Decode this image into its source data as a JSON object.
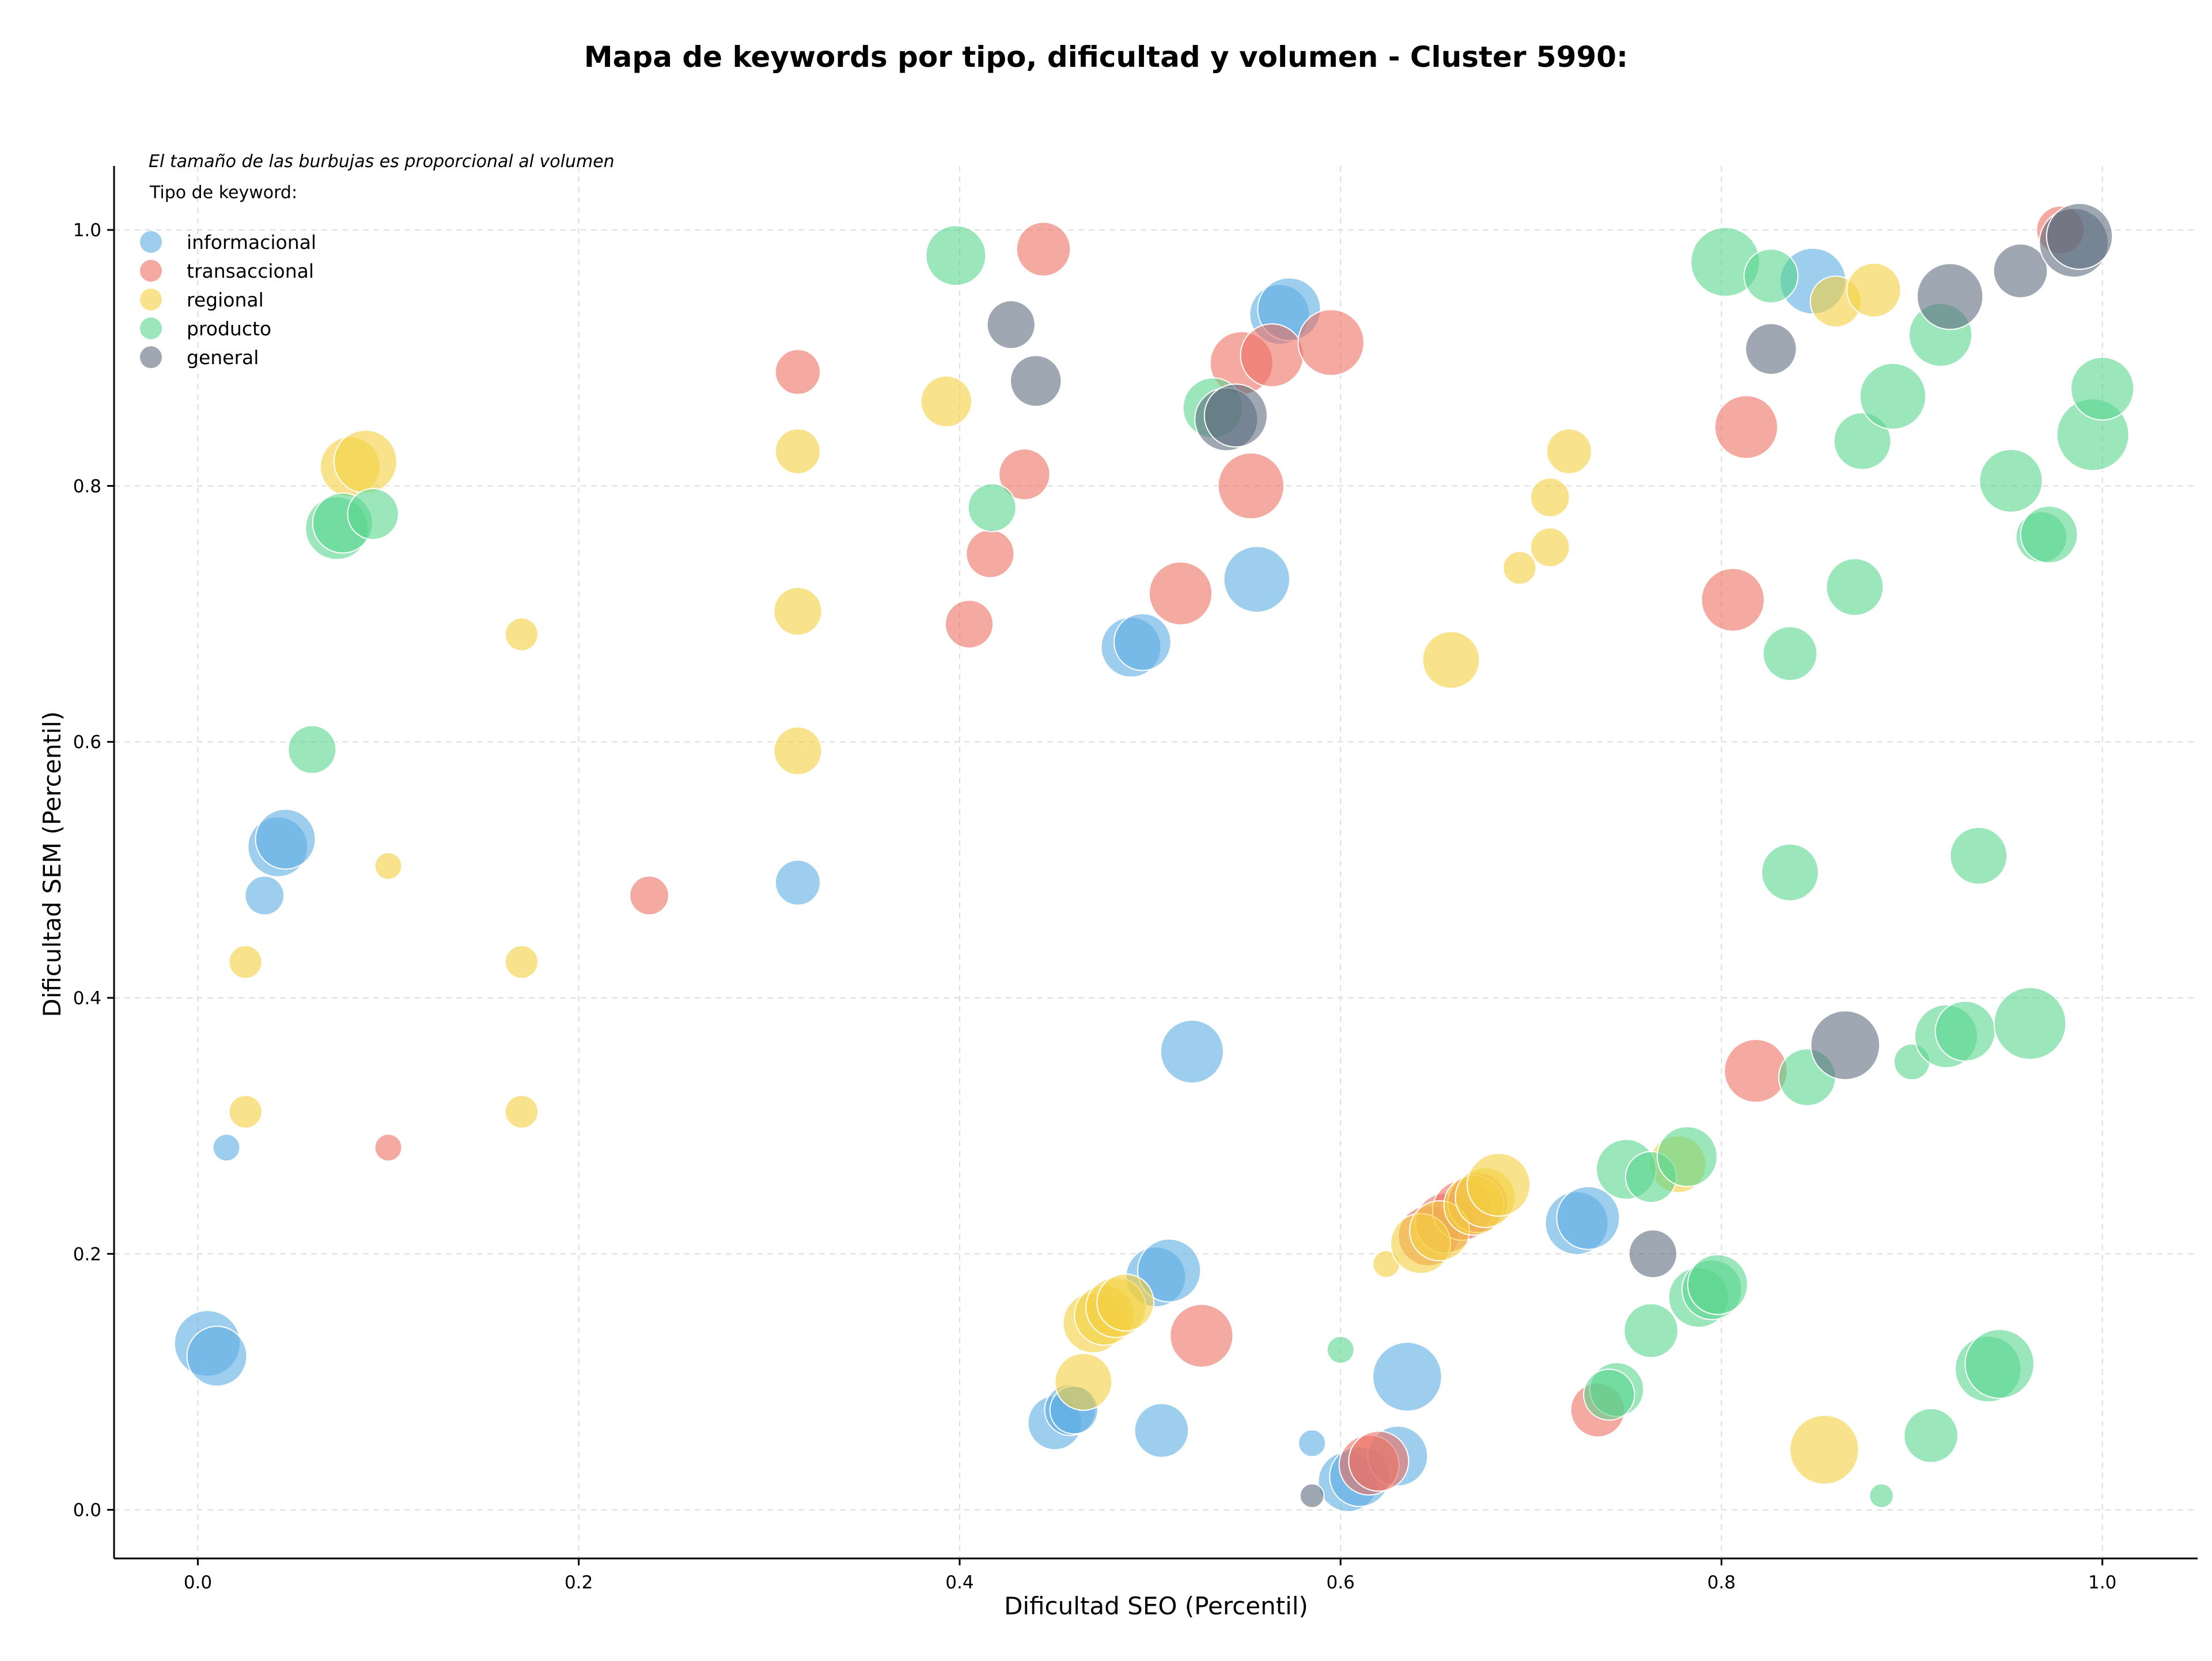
{
  "chart_data": {
    "type": "scatter",
    "title": "Mapa de keywords por tipo, dificultad y volumen - Cluster 5990:",
    "xlabel": "Dificultad SEO (Percentil)",
    "ylabel": "Dificultad SEM (Percentil)",
    "xlim": [
      -0.044,
      1.05
    ],
    "ylim": [
      -0.038,
      1.05
    ],
    "xticks": [
      "0.0",
      "0.2",
      "0.4",
      "0.6",
      "0.8",
      "1.0"
    ],
    "yticks": [
      "0.0",
      "0.2",
      "0.4",
      "0.6",
      "0.8",
      "1.0"
    ],
    "grid": true,
    "note": "El tamaño de las burbujas es proporcional al volumen",
    "legend_title": "Tipo de keyword:",
    "legend_position": "top-left",
    "series": [
      {
        "name": "informacional",
        "color": "#5DADE2",
        "points": [
          [
            0.005,
            0.13,
            1.1
          ],
          [
            0.01,
            0.12,
            1.0
          ],
          [
            0.015,
            0.283,
            0.45
          ],
          [
            0.035,
            0.48,
            0.65
          ],
          [
            0.042,
            0.518,
            1.0
          ],
          [
            0.046,
            0.524,
            1.0
          ],
          [
            0.315,
            0.49,
            0.75
          ],
          [
            0.45,
            0.068,
            0.9
          ],
          [
            0.458,
            0.078,
            0.85
          ],
          [
            0.46,
            0.078,
            0.8
          ],
          [
            0.49,
            0.674,
            1.0
          ],
          [
            0.496,
            0.678,
            0.95
          ],
          [
            0.503,
            0.182,
            1.0
          ],
          [
            0.51,
            0.187,
            1.05
          ],
          [
            0.506,
            0.062,
            0.9
          ],
          [
            0.522,
            0.358,
            1.05
          ],
          [
            0.556,
            0.727,
            1.1
          ],
          [
            0.568,
            0.934,
            1.0
          ],
          [
            0.573,
            0.938,
            1.05
          ],
          [
            0.585,
            0.052,
            0.45
          ],
          [
            0.604,
            0.022,
            1.0
          ],
          [
            0.61,
            0.026,
            1.0
          ],
          [
            0.63,
            0.042,
            1.0
          ],
          [
            0.635,
            0.104,
            1.15
          ],
          [
            0.724,
            0.224,
            1.05
          ],
          [
            0.73,
            0.228,
            1.05
          ],
          [
            0.848,
            0.96,
            1.1
          ]
        ]
      },
      {
        "name": "transaccional",
        "color": "#EC7063",
        "points": [
          [
            0.1,
            0.283,
            0.45
          ],
          [
            0.237,
            0.48,
            0.65
          ],
          [
            0.315,
            0.889,
            0.75
          ],
          [
            0.405,
            0.692,
            0.8
          ],
          [
            0.416,
            0.747,
            0.8
          ],
          [
            0.434,
            0.809,
            0.85
          ],
          [
            0.444,
            0.985,
            0.9
          ],
          [
            0.516,
            0.716,
            1.05
          ],
          [
            0.527,
            0.136,
            1.05
          ],
          [
            0.548,
            0.896,
            1.05
          ],
          [
            0.553,
            0.8,
            1.1
          ],
          [
            0.564,
            0.902,
            1.05
          ],
          [
            0.595,
            0.912,
            1.1
          ],
          [
            0.615,
            0.035,
            1.0
          ],
          [
            0.62,
            0.038,
            1.0
          ],
          [
            0.646,
            0.214,
            1.0
          ],
          [
            0.655,
            0.224,
            1.0
          ],
          [
            0.664,
            0.234,
            1.0
          ],
          [
            0.672,
            0.24,
            1.0
          ],
          [
            0.735,
            0.078,
            0.9
          ],
          [
            0.806,
            0.711,
            1.05
          ],
          [
            0.813,
            0.846,
            1.05
          ],
          [
            0.818,
            0.343,
            1.05
          ],
          [
            0.978,
            1.0,
            0.8
          ]
        ]
      },
      {
        "name": "regional",
        "color": "#F4D03F",
        "points": [
          [
            0.025,
            0.428,
            0.55
          ],
          [
            0.025,
            0.311,
            0.55
          ],
          [
            0.08,
            0.815,
            1.0
          ],
          [
            0.088,
            0.819,
            1.05
          ],
          [
            0.1,
            0.503,
            0.45
          ],
          [
            0.17,
            0.684,
            0.55
          ],
          [
            0.17,
            0.428,
            0.55
          ],
          [
            0.17,
            0.311,
            0.55
          ],
          [
            0.315,
            0.827,
            0.75
          ],
          [
            0.315,
            0.702,
            0.8
          ],
          [
            0.315,
            0.593,
            0.8
          ],
          [
            0.393,
            0.866,
            0.85
          ],
          [
            0.465,
            0.1,
            0.95
          ],
          [
            0.47,
            0.146,
            1.0
          ],
          [
            0.476,
            0.152,
            1.0
          ],
          [
            0.482,
            0.158,
            1.0
          ],
          [
            0.487,
            0.162,
            0.95
          ],
          [
            0.624,
            0.192,
            0.45
          ],
          [
            0.642,
            0.208,
            1.0
          ],
          [
            0.652,
            0.218,
            1.0
          ],
          [
            0.658,
            0.664,
            0.95
          ],
          [
            0.67,
            0.238,
            1.0
          ],
          [
            0.676,
            0.244,
            1.0
          ],
          [
            0.683,
            0.254,
            1.05
          ],
          [
            0.694,
            0.736,
            0.55
          ],
          [
            0.71,
            0.791,
            0.65
          ],
          [
            0.71,
            0.752,
            0.65
          ],
          [
            0.72,
            0.827,
            0.75
          ],
          [
            0.777,
            0.27,
            0.95
          ],
          [
            0.854,
            0.047,
            1.15
          ],
          [
            0.86,
            0.944,
            0.85
          ],
          [
            0.88,
            0.953,
            0.9
          ]
        ]
      },
      {
        "name": "producto",
        "color": "#58D68D",
        "points": [
          [
            0.06,
            0.594,
            0.8
          ],
          [
            0.073,
            0.767,
            1.05
          ],
          [
            0.076,
            0.771,
            1.0
          ],
          [
            0.092,
            0.778,
            0.85
          ],
          [
            0.398,
            0.98,
            1.0
          ],
          [
            0.417,
            0.783,
            0.8
          ],
          [
            0.533,
            0.861,
            1.0
          ],
          [
            0.6,
            0.125,
            0.45
          ],
          [
            0.75,
            0.266,
            1.0
          ],
          [
            0.745,
            0.094,
            0.9
          ],
          [
            0.741,
            0.09,
            0.85
          ],
          [
            0.763,
            0.14,
            0.9
          ],
          [
            0.763,
            0.26,
            0.85
          ],
          [
            0.782,
            0.276,
            1.0
          ],
          [
            0.788,
            0.166,
            1.0
          ],
          [
            0.795,
            0.172,
            1.0
          ],
          [
            0.798,
            0.176,
            1.0
          ],
          [
            0.802,
            0.975,
            1.15
          ],
          [
            0.826,
            0.964,
            0.9
          ],
          [
            0.836,
            0.669,
            0.9
          ],
          [
            0.836,
            0.498,
            0.95
          ],
          [
            0.845,
            0.338,
            0.95
          ],
          [
            0.87,
            0.721,
            0.95
          ],
          [
            0.874,
            0.835,
            0.95
          ],
          [
            0.884,
            0.011,
            0.4
          ],
          [
            0.89,
            0.87,
            1.1
          ],
          [
            0.9,
            0.35,
            0.6
          ],
          [
            0.91,
            0.058,
            0.9
          ],
          [
            0.915,
            0.918,
            1.05
          ],
          [
            0.918,
            0.37,
            1.05
          ],
          [
            0.928,
            0.374,
            1.0
          ],
          [
            0.935,
            0.511,
            0.95
          ],
          [
            0.94,
            0.11,
            1.1
          ],
          [
            0.946,
            0.114,
            1.15
          ],
          [
            0.952,
            0.804,
            1.05
          ],
          [
            0.962,
            0.38,
            1.2
          ],
          [
            0.968,
            0.76,
            0.85
          ],
          [
            0.972,
            0.762,
            0.95
          ],
          [
            0.995,
            0.84,
            1.2
          ],
          [
            1.0,
            0.876,
            1.05
          ]
        ]
      },
      {
        "name": "general",
        "color": "#5D6D7E",
        "points": [
          [
            0.427,
            0.926,
            0.8
          ],
          [
            0.44,
            0.882,
            0.85
          ],
          [
            0.54,
            0.852,
            1.05
          ],
          [
            0.545,
            0.855,
            1.05
          ],
          [
            0.585,
            0.011,
            0.4
          ],
          [
            0.764,
            0.2,
            0.8
          ],
          [
            0.826,
            0.907,
            0.85
          ],
          [
            0.865,
            0.363,
            1.15
          ],
          [
            0.92,
            0.948,
            1.1
          ],
          [
            0.957,
            0.968,
            0.9
          ],
          [
            0.985,
            0.99,
            1.15
          ],
          [
            0.988,
            0.995,
            1.1
          ]
        ]
      }
    ]
  }
}
